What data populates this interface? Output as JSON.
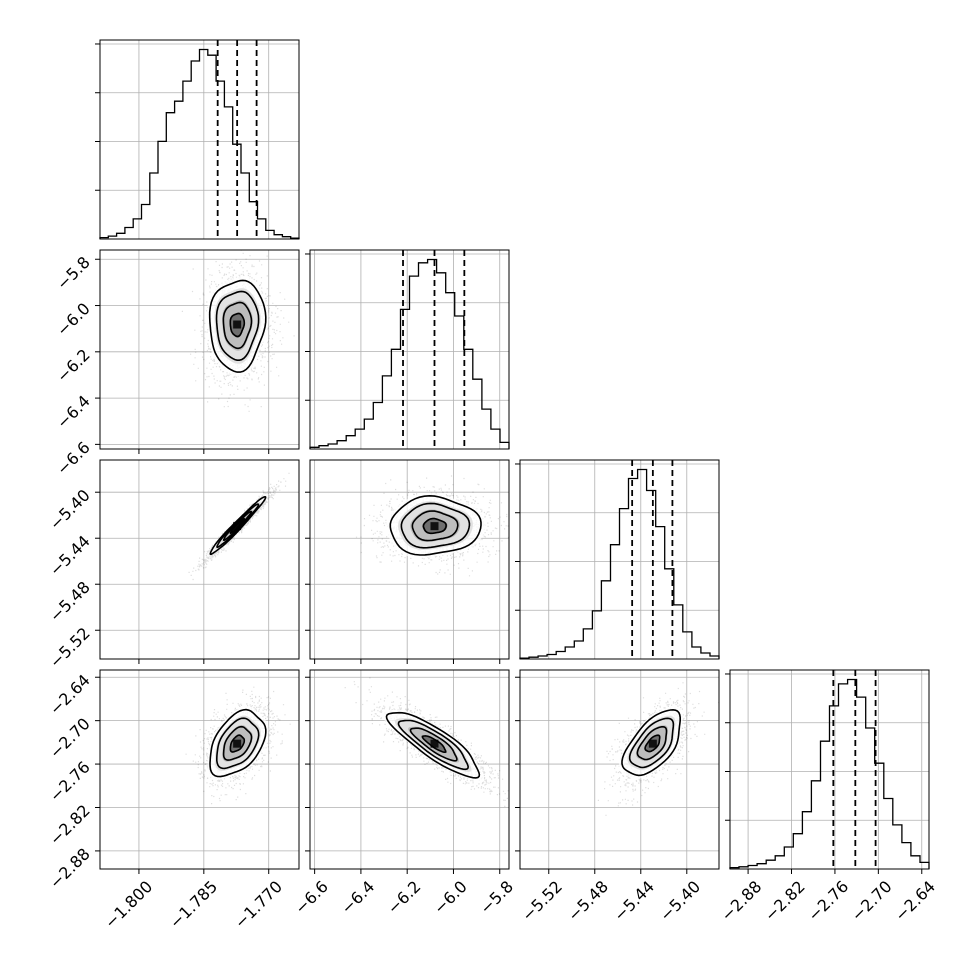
{
  "chart_data": {
    "type": "corner",
    "grid": true,
    "parameters": [
      {
        "ticks": [
          -1.8,
          -1.785,
          -1.77
        ],
        "tick_labels": [
          "−1.800",
          "−1.785",
          "−1.770"
        ],
        "range": [
          -1.809,
          -1.763
        ],
        "quantiles": [
          -1.7818,
          -1.7773,
          -1.7728
        ],
        "hist_counts": [
          0.5,
          1,
          2,
          4,
          7,
          12,
          23,
          34,
          44,
          48,
          55,
          62,
          66,
          64,
          55,
          46,
          33,
          23,
          13,
          7,
          3,
          1.5,
          0.8,
          0.3
        ]
      },
      {
        "ticks": [
          -6.6,
          -6.4,
          -6.2,
          -6.0,
          -5.8
        ],
        "tick_labels": [
          "−6.6",
          "−6.4",
          "−6.2",
          "−6.0",
          "−5.8"
        ],
        "range": [
          -6.62,
          -5.76
        ],
        "quantiles": [
          -6.218,
          -6.082,
          -5.953
        ],
        "hist_counts": [
          0.5,
          1,
          1.5,
          2.5,
          4,
          6,
          9,
          14,
          22,
          30,
          42,
          52,
          56,
          57,
          53,
          47,
          40,
          30,
          21,
          12,
          6,
          2
        ]
      },
      {
        "ticks": [
          -5.52,
          -5.48,
          -5.44,
          -5.4
        ],
        "tick_labels": [
          "−5.52",
          "−5.48",
          "−5.44",
          "−5.40"
        ],
        "range": [
          -5.545,
          -5.372
        ],
        "quantiles": [
          -5.4475,
          -5.4295,
          -5.4125
        ],
        "hist_counts": [
          0.3,
          0.6,
          1,
          1.5,
          2.5,
          4,
          6,
          10,
          16,
          26,
          38,
          50,
          60,
          63,
          56,
          44,
          30,
          18,
          9,
          4,
          2,
          1
        ]
      },
      {
        "ticks": [
          -2.88,
          -2.82,
          -2.76,
          -2.7,
          -2.64
        ],
        "tick_labels": [
          "−2.88",
          "−2.82",
          "−2.76",
          "−2.70",
          "−2.64"
        ],
        "range": [
          -2.905,
          -2.63
        ],
        "quantiles": [
          -2.7622,
          -2.7318,
          -2.7038
        ],
        "hist_counts": [
          0.3,
          0.5,
          0.8,
          1.2,
          2,
          3,
          5,
          8,
          13,
          20,
          29,
          37,
          42,
          43,
          39,
          32,
          24,
          16,
          10,
          6,
          3,
          1.5
        ]
      }
    ],
    "pairs": [
      {
        "row": 1,
        "col": 0,
        "center": [
          -1.7773,
          -6.082
        ],
        "sd": [
          0.0032,
          0.098
        ],
        "rho": 0.05
      },
      {
        "row": 2,
        "col": 0,
        "center": [
          -1.7773,
          -5.4295
        ],
        "sd": [
          0.0032,
          0.0125
        ],
        "rho": 0.98
      },
      {
        "row": 2,
        "col": 1,
        "center": [
          -6.082,
          -5.4295
        ],
        "sd": [
          0.098,
          0.0125
        ],
        "rho": 0.03
      },
      {
        "row": 3,
        "col": 0,
        "center": [
          -1.7773,
          -2.7318
        ],
        "sd": [
          0.0032,
          0.0225
        ],
        "rho": 0.42
      },
      {
        "row": 3,
        "col": 1,
        "center": [
          -6.082,
          -2.7318
        ],
        "sd": [
          0.098,
          0.0225
        ],
        "rho": -0.85
      },
      {
        "row": 3,
        "col": 2,
        "center": [
          -5.4295,
          -2.7318
        ],
        "sd": [
          0.0125,
          0.0225
        ],
        "rho": 0.58
      }
    ]
  }
}
